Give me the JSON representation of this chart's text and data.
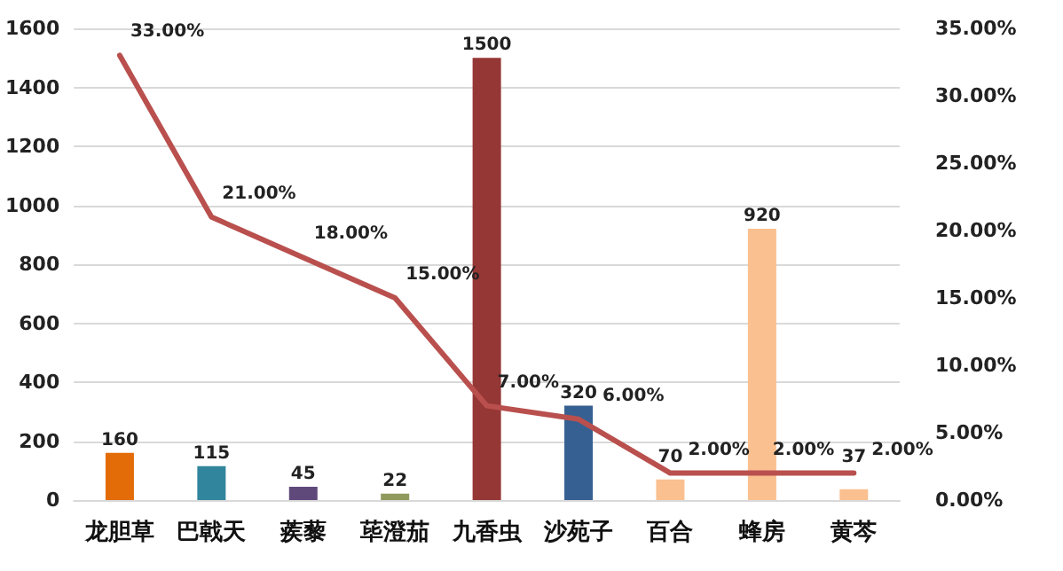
{
  "chart_data": {
    "type": "bar",
    "categories": [
      "龙胆草",
      "巴戟天",
      "蒺藜",
      "荜澄茄",
      "九香虫",
      "沙苑子",
      "百合",
      "蜂房",
      "黄芩"
    ],
    "series": [
      {
        "colors": [
          "#e36c09",
          "#31859c",
          "#5f497a",
          "#8f9a5c",
          "#953735",
          "#376092",
          "#fac090",
          "#fac090",
          "#fac090"
        ],
        "values": [
          160,
          115,
          45,
          22,
          1500,
          320,
          70,
          920,
          37
        ],
        "data_labels": true
      },
      {
        "type": "line",
        "axis": "y2",
        "color": "#b9504e",
        "values": [
          33,
          21,
          18,
          15,
          7,
          6,
          2,
          2,
          2
        ],
        "value_labels": [
          "33.00%",
          "21.00%",
          "18.00%",
          "15.00%",
          "7.00%",
          "6.00%",
          "2.00%",
          "2.00%",
          "2.00%"
        ]
      }
    ],
    "ylim": [
      0,
      1600
    ],
    "yticks": [
      0,
      200,
      400,
      600,
      800,
      1000,
      1200,
      1400,
      1600
    ],
    "y2lim": [
      0,
      35
    ],
    "y2ticks": [
      {
        "value": 0,
        "label": "0.00%"
      },
      {
        "value": 5,
        "label": "5.00%"
      },
      {
        "value": 10,
        "label": "10.00%"
      },
      {
        "value": 15,
        "label": "15.00%"
      },
      {
        "value": 20,
        "label": "20.00%"
      },
      {
        "value": 25,
        "label": "25.00%"
      },
      {
        "value": 30,
        "label": "30.00%"
      },
      {
        "value": 35,
        "label": "35.00%"
      }
    ],
    "grid": "y",
    "marker": "none",
    "line_style": "solid"
  }
}
